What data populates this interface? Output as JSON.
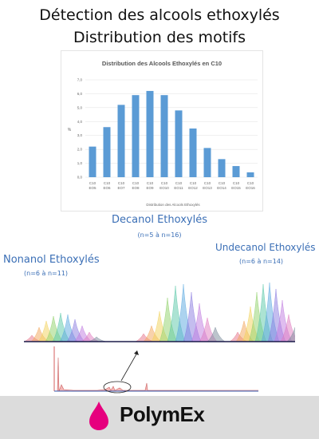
{
  "page": {
    "title_line1": "Détection des alcools ethoxylés",
    "title_line2": "Distribution des motifs"
  },
  "chart_data": {
    "type": "bar",
    "title": "Distribution  des Alcools Ethoxylés en C10",
    "xlabel": "Distribution des Alcools Ethoxylés",
    "ylabel": "%",
    "ylim": [
      0,
      7
    ],
    "yticks": [
      "0,0",
      "1,0",
      "2,0",
      "3,0",
      "4,0",
      "5,0",
      "6,0",
      "7,0"
    ],
    "grid": true,
    "color": "#5b9bd5",
    "categories": [
      [
        "C10",
        "EO5"
      ],
      [
        "C10",
        "EO6"
      ],
      [
        "C10",
        "EO7"
      ],
      [
        "C10",
        "EO8"
      ],
      [
        "C10",
        "EO9"
      ],
      [
        "C10",
        "EO10"
      ],
      [
        "C10",
        "EO11"
      ],
      [
        "C10",
        "EO12"
      ],
      [
        "C10",
        "EO13"
      ],
      [
        "C10",
        "EO14"
      ],
      [
        "C10",
        "EO15"
      ],
      [
        "C10",
        "EO16"
      ]
    ],
    "values": [
      2.2,
      3.6,
      5.2,
      5.9,
      6.2,
      5.9,
      4.8,
      3.5,
      2.1,
      1.3,
      0.8,
      0.35
    ]
  },
  "spectra": {
    "decanol_label": "Decanol Ethoxylés",
    "decanol_range": "(n=5 à n=16)",
    "nonanol_label": "Nonanol Ethoxylés",
    "nonanol_range": "(n=6 à n=11)",
    "undecanol_label": "Undecanol Ethoxylés",
    "undecanol_range": "(n=6 à n=14)"
  },
  "footer": {
    "logo_text": "PolymEx",
    "background": "#dcdcdc",
    "drop_color": "#e6007e"
  }
}
